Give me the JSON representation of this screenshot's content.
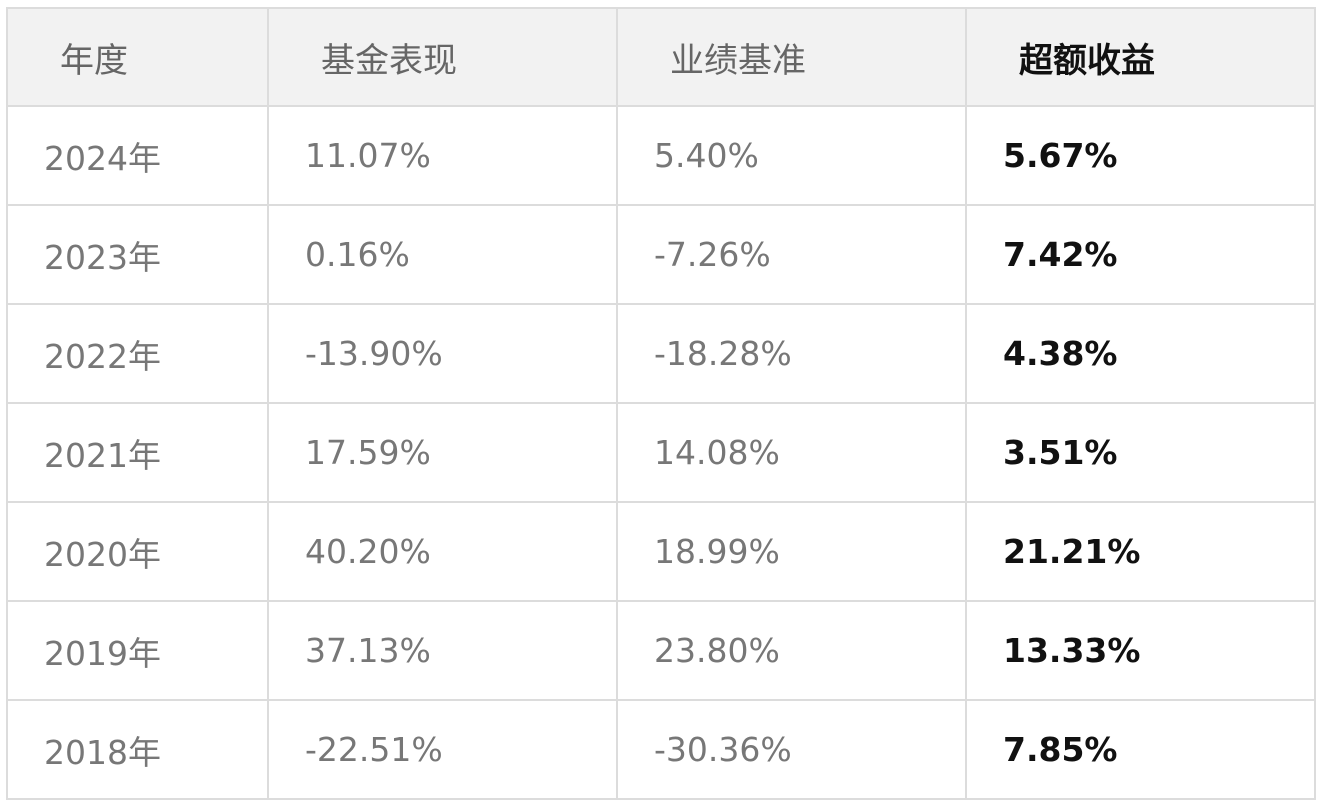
{
  "table": {
    "headers": {
      "year": "年度",
      "fund": "基金表现",
      "benchmark": "业绩基准",
      "excess": "超额收益"
    },
    "rows": [
      {
        "year": "2024年",
        "fund": "11.07%",
        "benchmark": "5.40%",
        "excess": "5.67%"
      },
      {
        "year": "2023年",
        "fund": "0.16%",
        "benchmark": "-7.26%",
        "excess": "7.42%"
      },
      {
        "year": "2022年",
        "fund": "-13.90%",
        "benchmark": "-18.28%",
        "excess": "4.38%"
      },
      {
        "year": "2021年",
        "fund": "17.59%",
        "benchmark": "14.08%",
        "excess": "3.51%"
      },
      {
        "year": "2020年",
        "fund": "40.20%",
        "benchmark": "18.99%",
        "excess": "21.21%"
      },
      {
        "year": "2019年",
        "fund": "37.13%",
        "benchmark": "23.80%",
        "excess": "13.33%"
      },
      {
        "year": "2018年",
        "fund": "-22.51%",
        "benchmark": "-30.36%",
        "excess": "7.85%"
      }
    ]
  }
}
